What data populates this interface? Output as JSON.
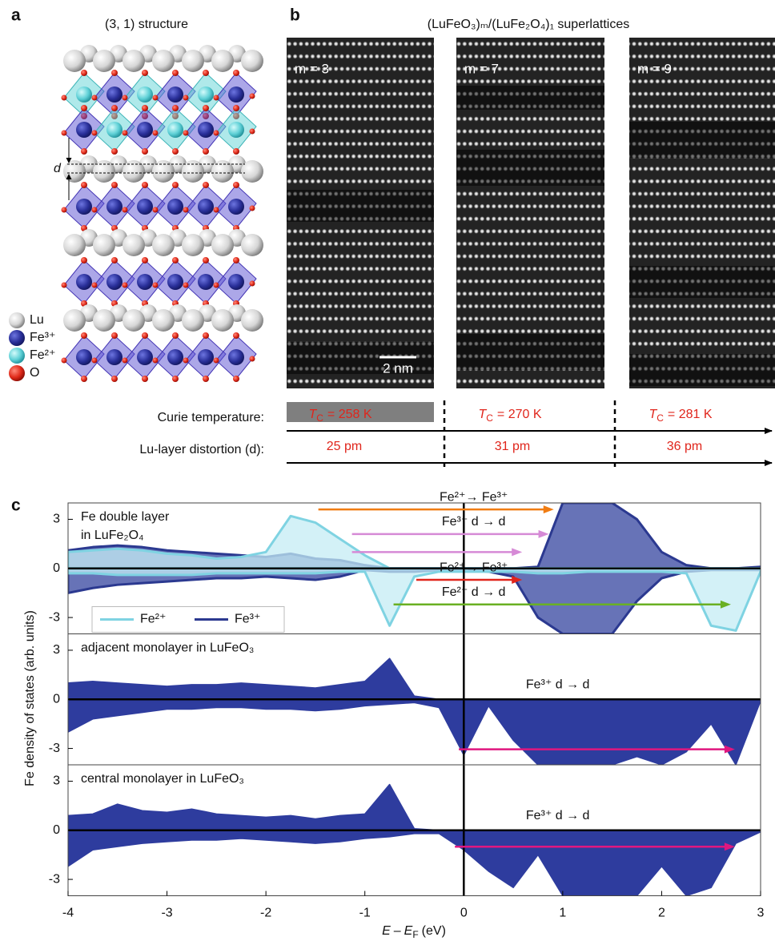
{
  "panel_labels": [
    "a",
    "b",
    "c"
  ],
  "panel_a": {
    "title": "(3, 1) structure",
    "distortion_symbol": "d",
    "legend": [
      "Lu",
      "Fe³⁺",
      "Fe²⁺",
      "O"
    ]
  },
  "panel_b": {
    "title": "(LuFeO₃)ₘ/(LuFe₂O₄)₁ superlattices",
    "images": [
      "m = 3",
      "m = 7",
      "m = 9"
    ],
    "scale_bar": "2 nm",
    "curie_label": "Curie temperature:",
    "curie": [
      {
        "symbol": "T",
        "subscript": "C",
        "text": "= 258 K"
      },
      {
        "symbol": "T",
        "subscript": "C",
        "text": "= 270 K"
      },
      {
        "symbol": "T",
        "subscript": "C",
        "text": "= 281 K"
      }
    ],
    "distortion_label": "Lu-layer distortion (d):",
    "distortion": [
      "25 pm",
      "31 pm",
      "36 pm"
    ]
  },
  "panel_c": {
    "y_label": "Fe density of states (arb. units)",
    "x_label": [
      "E",
      "–",
      "E",
      "F",
      "(eV)"
    ]
  },
  "chart_data": [
    {
      "type": "area",
      "title": [
        "Fe double layer",
        "in LuFe₂O₄"
      ],
      "x": [
        -4,
        -3.75,
        -3.5,
        -3.25,
        -3,
        -2.75,
        -2.5,
        -2.25,
        -2,
        -1.75,
        -1.5,
        -1.25,
        -1,
        -0.75,
        -0.5,
        -0.25,
        0,
        0.25,
        0.5,
        0.75,
        1,
        1.25,
        1.5,
        1.75,
        2,
        2.25,
        2.5,
        2.75,
        3
      ],
      "xlim": [
        -4,
        3
      ],
      "ylim": [
        -4,
        4
      ],
      "yticks": [
        -3,
        0,
        3
      ],
      "legend": "lower left",
      "series": [
        {
          "name": "Fe³⁺",
          "color": "#2b3990",
          "fill": "#34449f",
          "values": [
            1.1,
            1.3,
            1.4,
            1.3,
            1.1,
            1.0,
            0.9,
            0.8,
            0.7,
            0.9,
            0.6,
            0.5,
            0.2,
            0,
            0,
            0,
            0,
            0,
            0,
            0.1,
            4,
            4,
            4,
            3,
            1,
            0.2,
            0,
            0,
            0.1
          ],
          "values_down": [
            -1.5,
            -1.2,
            -1.0,
            -0.9,
            -0.8,
            -0.7,
            -0.6,
            -0.6,
            -0.5,
            -0.6,
            -0.7,
            -0.5,
            -0.1,
            -0.2,
            -0.2,
            -0.1,
            -0.1,
            -0.2,
            -0.5,
            -3,
            -4,
            -4,
            -4,
            -2,
            -0.6,
            -0.2,
            -0.1,
            -0.1,
            -0.1
          ]
        },
        {
          "name": "Fe²⁺",
          "color": "#7fd3e2",
          "fill": "#c4ecf4",
          "values": [
            1.0,
            1.1,
            1.2,
            1.1,
            0.9,
            0.8,
            0.6,
            0.7,
            1.0,
            3.2,
            2.8,
            1.8,
            0.8,
            0,
            0,
            0,
            0,
            0,
            0,
            0,
            0,
            0,
            0,
            0,
            0,
            0,
            0,
            0,
            0
          ],
          "values_down": [
            -0.3,
            -0.3,
            -0.4,
            -0.4,
            -0.4,
            -0.4,
            -0.3,
            -0.3,
            -0.3,
            -0.3,
            -0.3,
            -0.2,
            -0.2,
            -3.5,
            -0.5,
            -0.2,
            -0.2,
            -0.2,
            -0.2,
            -0.3,
            -0.3,
            -0.2,
            -0.2,
            -0.2,
            -0.2,
            -0.3,
            -3.5,
            -3.8,
            -0.2
          ]
        }
      ],
      "arrows": [
        {
          "label": "Fe²⁺→ Fe³⁺",
          "color": "#f07c12",
          "x": [
            -1.47,
            0.91
          ],
          "y": 3.6
        },
        {
          "label": "Fe³⁺ d → d",
          "color": "#d68ad6",
          "x": [
            -1.13,
            0.86
          ],
          "y": 2.1
        },
        {
          "color": "#d68ad6",
          "x": [
            -1.13,
            0.59
          ],
          "y": 1.0
        },
        {
          "label": "Fe²⁺→ Fe³⁺",
          "color": "#e0251b",
          "x": [
            -0.48,
            0.59
          ],
          "y": -0.7
        },
        {
          "label": "Fe²⁺ d → d",
          "color": "#6ab023",
          "x": [
            -0.71,
            2.7
          ],
          "y": -2.2
        }
      ]
    },
    {
      "type": "area",
      "title": [
        "adjacent monolayer in LuFeO₃"
      ],
      "x": [
        -4,
        -3.75,
        -3.5,
        -3.25,
        -3,
        -2.75,
        -2.5,
        -2.25,
        -2,
        -1.75,
        -1.5,
        -1.25,
        -1,
        -0.75,
        -0.5,
        -0.25,
        0,
        0.25,
        0.5,
        0.75,
        1,
        1.25,
        1.5,
        1.75,
        2,
        2.25,
        2.5,
        2.75,
        3
      ],
      "xlim": [
        -4,
        3
      ],
      "ylim": [
        -4,
        4
      ],
      "yticks": [
        -3,
        0,
        3
      ],
      "series": [
        {
          "color": "#2e3c9e",
          "fill": "#2e3c9e",
          "values": [
            1.0,
            1.1,
            1.0,
            0.9,
            0.8,
            0.9,
            0.9,
            1.0,
            0.9,
            0.8,
            0.7,
            0.9,
            1.1,
            2.5,
            0.2,
            0,
            0,
            0,
            0,
            0,
            0,
            0,
            0,
            0,
            0,
            0,
            0,
            0,
            0
          ],
          "values_down": [
            -2.0,
            -1.2,
            -1.0,
            -0.8,
            -0.6,
            -0.6,
            -0.5,
            -0.5,
            -0.6,
            -0.6,
            -0.7,
            -0.6,
            -0.4,
            -0.3,
            -0.2,
            -0.5,
            -3.4,
            -0.4,
            -2.5,
            -4,
            -4,
            -4,
            -4,
            -3.5,
            -4,
            -3.2,
            -1.5,
            -4,
            -0.1
          ]
        }
      ],
      "arrows": [
        {
          "label": "Fe³⁺ d → d",
          "color": "#e0177f",
          "x": [
            -0.05,
            2.74
          ],
          "y": -3.05
        }
      ]
    },
    {
      "type": "area",
      "title": [
        "central monolayer in LuFeO₃"
      ],
      "x": [
        -4,
        -3.75,
        -3.5,
        -3.25,
        -3,
        -2.75,
        -2.5,
        -2.25,
        -2,
        -1.75,
        -1.5,
        -1.25,
        -1,
        -0.75,
        -0.5,
        -0.25,
        0,
        0.25,
        0.5,
        0.75,
        1,
        1.25,
        1.5,
        1.75,
        2,
        2.25,
        2.5,
        2.75,
        3
      ],
      "xlim": [
        -4,
        3
      ],
      "ylim": [
        -4,
        4
      ],
      "yticks": [
        -3,
        0,
        3
      ],
      "xticks": [
        -4,
        -3,
        -2,
        -1,
        0,
        1,
        2,
        3
      ],
      "series": [
        {
          "color": "#2e3c9e",
          "fill": "#2e3c9e",
          "values": [
            0.9,
            1.0,
            1.6,
            1.2,
            1.1,
            1.3,
            1.0,
            0.9,
            0.8,
            0.9,
            0.7,
            0.9,
            1.0,
            2.8,
            0.1,
            0,
            0,
            0,
            0,
            0,
            0,
            0,
            0,
            0,
            0,
            0,
            0,
            0,
            0
          ],
          "values_down": [
            -2.2,
            -1.2,
            -1.0,
            -0.8,
            -0.7,
            -0.6,
            -0.6,
            -0.5,
            -0.6,
            -0.7,
            -0.8,
            -0.7,
            -0.5,
            -0.4,
            -0.2,
            -0.2,
            -1.2,
            -2.5,
            -3.5,
            -1.5,
            -4,
            -4,
            -4,
            -4,
            -2.2,
            -4,
            -3.5,
            -0.8,
            -0.1
          ]
        }
      ],
      "arrows": [
        {
          "label": "Fe³⁺ d → d",
          "color": "#e0177f",
          "x": [
            -0.09,
            2.74
          ],
          "y": -1.0
        }
      ]
    }
  ]
}
